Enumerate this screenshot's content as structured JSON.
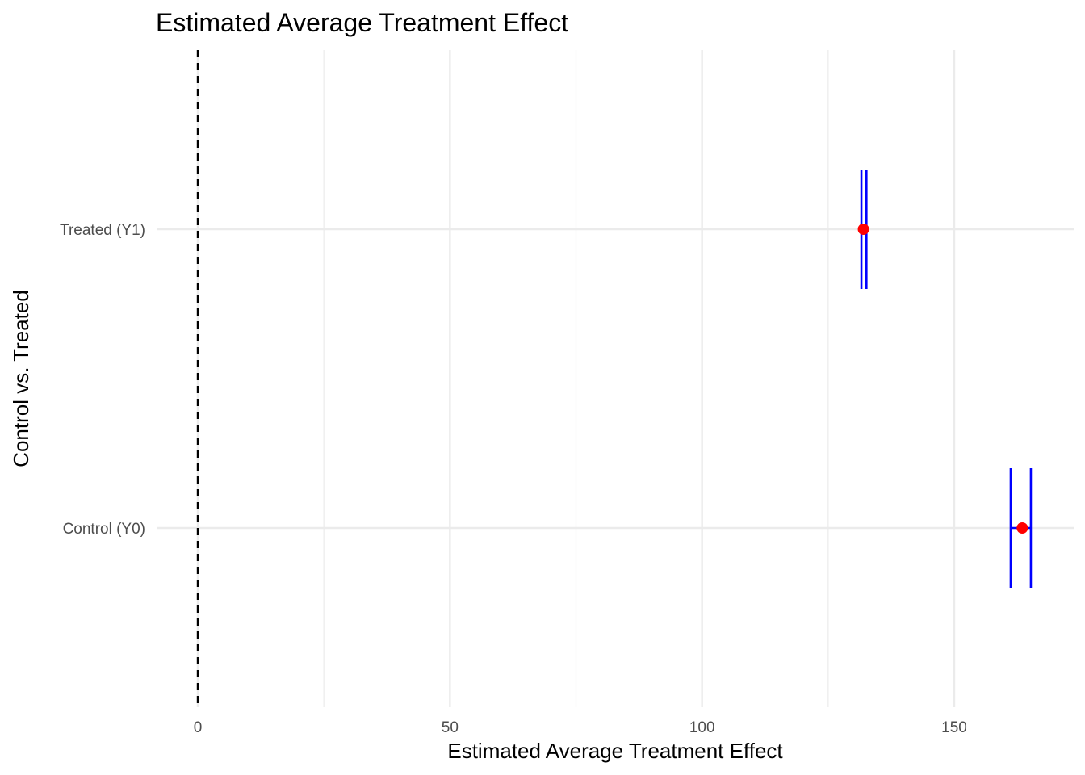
{
  "chart_data": {
    "type": "scatter",
    "title": "Estimated Average Treatment Effect",
    "xlabel": "Estimated Average Treatment Effect",
    "ylabel": "Control vs. Treated",
    "xlim": [
      0,
      173
    ],
    "x_ticks": [
      0,
      50,
      100,
      150
    ],
    "categories": [
      "Treated (Y1)",
      "Control (Y0)"
    ],
    "points": [
      {
        "category": "Treated (Y1)",
        "estimate": 132.0,
        "ci_low": 131.6,
        "ci_high": 132.6
      },
      {
        "category": "Control (Y0)",
        "estimate": 163.5,
        "ci_low": 161.2,
        "ci_high": 165.2
      }
    ],
    "reference_line": {
      "x": 0,
      "style": "dashed"
    },
    "grid": true,
    "colors": {
      "point": "#ff0000",
      "errorbar": "#0000ff",
      "grid": "#ebebeb",
      "reference": "#000000"
    }
  }
}
